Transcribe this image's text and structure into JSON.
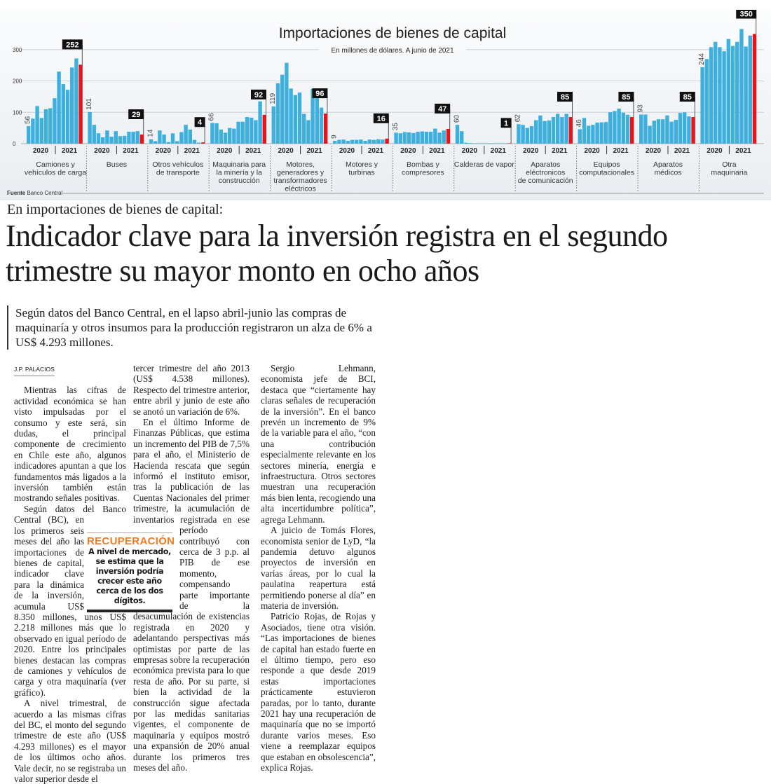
{
  "chart_data": {
    "type": "bar",
    "title": "Importaciones de bienes de capital",
    "subtitle": "En millones de dólares. A junio de 2021",
    "source_label": "Fuente",
    "source": "Banco Central",
    "ylim": [
      0,
      350
    ],
    "yticks": [
      0,
      100,
      200,
      300
    ],
    "grid": true,
    "year_labels": [
      "2020",
      "2021"
    ],
    "colors": {
      "bars": "#3fb0dd",
      "latest": "#e8141c",
      "label_box": "#111111"
    },
    "groups": [
      {
        "name": "Camiones y vehículos de carga",
        "lines": [
          "Camiones y",
          "vehículos de carga"
        ],
        "values": [
          56,
          80,
          120,
          82,
          110,
          113,
          145,
          230,
          190,
          172,
          243,
          272,
          252
        ],
        "first_label": "56",
        "last_label": "252"
      },
      {
        "name": "Buses",
        "lines": [
          "Buses"
        ],
        "values": [
          101,
          60,
          33,
          20,
          42,
          22,
          40,
          24,
          25,
          38,
          38,
          40,
          29
        ],
        "first_label": "101",
        "last_label": "29"
      },
      {
        "name": "Otros vehículos de transporte",
        "lines": [
          "Otros vehículos",
          "de transporte"
        ],
        "values": [
          14,
          8,
          42,
          29,
          5,
          33,
          8,
          37,
          60,
          45,
          12,
          3,
          4
        ],
        "first_label": "14",
        "last_label": "4"
      },
      {
        "name": "Maquinaria para la minería y la construcción",
        "lines": [
          "Maquinaria para",
          "la minería y la",
          "construcción"
        ],
        "values": [
          66,
          65,
          45,
          35,
          50,
          48,
          70,
          70,
          85,
          83,
          75,
          135,
          92
        ],
        "first_label": "66",
        "last_label": "92"
      },
      {
        "name": "Motores, generadores y transformadores eléctricos",
        "lines": [
          "Motores,",
          "generadores y",
          "transformadores",
          "eléctricos"
        ],
        "values": [
          119,
          193,
          220,
          258,
          176,
          155,
          163,
          95,
          75,
          175,
          153,
          115,
          96
        ],
        "first_label": "119",
        "last_label": "96"
      },
      {
        "name": "Motores y turbinas",
        "lines": [
          "Motores y",
          "turbinas"
        ],
        "values": [
          9,
          12,
          13,
          9,
          12,
          12,
          13,
          9,
          13,
          12,
          14,
          13,
          16
        ],
        "first_label": "9",
        "last_label": "16"
      },
      {
        "name": "Bombas y compresores",
        "lines": [
          "Bombas y",
          "compresores"
        ],
        "values": [
          35,
          33,
          37,
          36,
          34,
          38,
          39,
          38,
          38,
          48,
          35,
          42,
          47
        ],
        "first_label": "35",
        "last_label": "47"
      },
      {
        "name": "Calderas de vapor",
        "lines": [
          "Calderas de vapor"
        ],
        "values": [
          60,
          40,
          3,
          2,
          1,
          1,
          1,
          1,
          1,
          1,
          1,
          1,
          1
        ],
        "first_label": "60",
        "last_label": "1"
      },
      {
        "name": "Aparatos eléctronicos de comunicación",
        "lines": [
          "Aparatos",
          "eléctronicos",
          "de comunicación"
        ],
        "values": [
          62,
          60,
          50,
          56,
          75,
          90,
          72,
          74,
          85,
          95,
          85,
          95,
          85
        ],
        "first_label": "62",
        "last_label": "85"
      },
      {
        "name": "Equipos computacionales",
        "lines": [
          "Equipos",
          "computacionales"
        ],
        "values": [
          46,
          82,
          57,
          60,
          67,
          68,
          69,
          100,
          104,
          112,
          99,
          92,
          85
        ],
        "first_label": "46",
        "last_label": "85"
      },
      {
        "name": "Aparatos médicos",
        "lines": [
          "Aparatos",
          "médicos"
        ],
        "values": [
          93,
          93,
          57,
          73,
          78,
          78,
          90,
          70,
          76,
          98,
          100,
          87,
          85
        ],
        "first_label": "93",
        "last_label": "85"
      },
      {
        "name": "Otra maquinaria",
        "lines": [
          "Otra",
          "maquinaria"
        ],
        "values": [
          244,
          270,
          308,
          325,
          308,
          295,
          334,
          312,
          325,
          366,
          310,
          345,
          350
        ],
        "first_label": "244",
        "last_label": "350"
      }
    ]
  },
  "article": {
    "kicker": "En importaciones de bienes de capital:",
    "headline": "Indicador clave para la inversión registra en el segundo trimestre su mayor monto en ocho años",
    "deck": "Según datos del Banco Central, en el lapso abril-junio las compras de maquinaría y otros insumos para la producción registraron un alza de 6% a US$ 4.293 millones.",
    "byline": "J.P. PALACIOS",
    "paragraphs": [
      "Mientras las cifras de actividad económica se han visto impulsadas por el consumo y este será, sin dudas, el principal componente de crecimiento en Chile este año, algunos indicadores apuntan a que los fundamentos más ligados a la inversión también están mostrando señales positivas.",
      "Según datos del Banco Central (BC), en los primeros seis meses del año las importaciones de bienes de capital, indicador clave para la dinámica de la inversión, acumula US$ 8.350 millones, unos US$ 2.218 millones más que lo observado en igual período de 2020. Entre los principales bienes destacan las compras de camiones y vehículos de carga y otra maquinaría (ver gráfico).",
      "A nivel trimestral, de acuerdo a las mismas cifras del BC, el monto del segundo trimestre de este año (US$ 4.293 millones) es el mayor de los últimos ocho años. Vale decir, no se registraba un valor superior desde el",
      "tercer trimestre del año 2013 (US$ 4.538 millones). Respecto del trimestre anterior, entre abril y junio de este año se anotó un variación de 6%.",
      "En el último Informe de Finanzas Públicas, que estima un incremento del PIB de 7,5% para el año, el Ministerio de Hacienda rescata que según informó el instituto emisor, tras la publicación de las Cuentas Nacionales del primer trimestre, la acumulación de inventarios registrada en ese período contribuyó con cerca de 3 p.p. al PIB de ese momento, compensando parte importante de la desacumulación de existencias registrada en 2020 y adelantando perspectivas más optimistas por parte de las empresas sobre la recuperación económica prevista para lo que resta de año. Por su parte, si bien la actividad de la construcción sigue afectada por las medidas sanitarias vigentes, el componente de maquinaria y equipos mostró una expansión de 20% anual durante los primeros tres meses del año.",
      "Sergio Lehmann, economista jefe de BCI, destaca que “ciertamente hay claras señales de recuperación de la inversión”. En el banco prevén un incremento de 9% de la variable para el año, “con una contribución especialmente relevante en los sectores minería, energía e infraestructura. Otros sectores muestran una recuperación más bien lenta, recogiendo una alta incertidumbre política”, agrega Lehmann.",
      "A juicio de Tomás Flores, economista senior de LyD, “la pandemia detuvo algunos proyectos de inversión en varias áreas, por lo cual la paulatina reapertura está permitiendo ponerse al día” en materia de inversión.",
      "Patricio Rojas, de Rojas y Asociados, tiene otra visión. “Las importaciones de bienes de capital han estado fuerte en el último tiempo, pero eso responde a que desde 2019 estas importaciones prácticamente estuvieron paradas, por lo tanto, durante 2021 hay una recuperación de maquinaría que no se importó durante varios meses. Eso viene a reemplazar equipos que estaban en obsolescencia”, explica Rojas."
    ],
    "pullquote": {
      "title": "RECUPERACIÓN",
      "text": "A nivel de mercado, se estima que la inversión podría crecer este año cerca de los dos dígitos."
    }
  }
}
